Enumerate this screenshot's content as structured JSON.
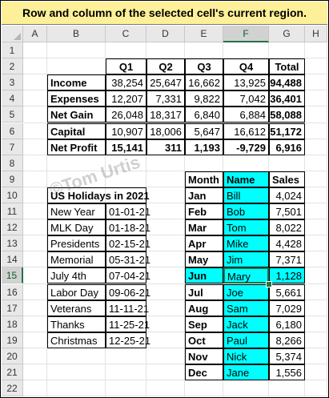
{
  "banner": "Row and column of the selected cell's current region.",
  "columns": [
    "A",
    "B",
    "C",
    "D",
    "E",
    "F",
    "G",
    "H"
  ],
  "rows": [
    "1",
    "2",
    "3",
    "4",
    "5",
    "6",
    "7",
    "8",
    "9",
    "10",
    "11",
    "12",
    "13",
    "14",
    "15",
    "16",
    "17",
    "18",
    "19",
    "20",
    "21",
    "22"
  ],
  "selected": {
    "column": "F",
    "row": "15"
  },
  "financial": {
    "headers": [
      "Q1",
      "Q2",
      "Q3",
      "Q4",
      "Total"
    ],
    "rows": [
      {
        "label": "Income",
        "values": [
          "38,254",
          "25,647",
          "16,662",
          "13,925",
          "94,488"
        ]
      },
      {
        "label": "Expenses",
        "values": [
          "12,207",
          "7,331",
          "9,822",
          "7,042",
          "36,401"
        ]
      },
      {
        "label": "Net Gain",
        "values": [
          "26,048",
          "18,317",
          "6,840",
          "6,884",
          "58,088"
        ]
      },
      {
        "label": "Capital",
        "values": [
          "10,907",
          "18,006",
          "5,647",
          "16,612",
          "51,172"
        ]
      },
      {
        "label": "Net Profit",
        "values": [
          "15,141",
          "311",
          "1,193",
          "-9,729",
          "6,916"
        ]
      }
    ]
  },
  "holidays": {
    "title": "US Holidays in 2021",
    "rows": [
      {
        "name": "New Year",
        "date": "01-01-21"
      },
      {
        "name": "MLK Day",
        "date": "01-18-21"
      },
      {
        "name": "Presidents",
        "date": "02-15-21"
      },
      {
        "name": "Memorial",
        "date": "05-31-21"
      },
      {
        "name": "July 4th",
        "date": "07-04-21"
      },
      {
        "name": "Labor Day",
        "date": "09-06-21"
      },
      {
        "name": "Veterans",
        "date": "11-11-21"
      },
      {
        "name": "Thanks",
        "date": "11-25-21"
      },
      {
        "name": "Christmas",
        "date": "12-25-21"
      }
    ]
  },
  "sales": {
    "headers": [
      "Month",
      "Name",
      "Sales"
    ],
    "rows": [
      {
        "month": "Jan",
        "name": "Bill",
        "sales": "4,024"
      },
      {
        "month": "Feb",
        "name": "Bob",
        "sales": "7,501"
      },
      {
        "month": "Mar",
        "name": "Tom",
        "sales": "8,022"
      },
      {
        "month": "Apr",
        "name": "Mike",
        "sales": "4,428"
      },
      {
        "month": "May",
        "name": "Jim",
        "sales": "7,371"
      },
      {
        "month": "Jun",
        "name": "Mary",
        "sales": "1,128"
      },
      {
        "month": "Jul",
        "name": "Joe",
        "sales": "5,661"
      },
      {
        "month": "Aug",
        "name": "Sam",
        "sales": "7,029"
      },
      {
        "month": "Sep",
        "name": "Jack",
        "sales": "6,180"
      },
      {
        "month": "Oct",
        "name": "Paul",
        "sales": "8,266"
      },
      {
        "month": "Nov",
        "name": "Nick",
        "sales": "5,374"
      },
      {
        "month": "Dec",
        "name": "Jane",
        "sales": "1,556"
      }
    ]
  },
  "watermark": "©Tom Urtis",
  "colors": {
    "highlight": "#00ffff",
    "banner": "#fdf099",
    "selection": "#217346"
  }
}
